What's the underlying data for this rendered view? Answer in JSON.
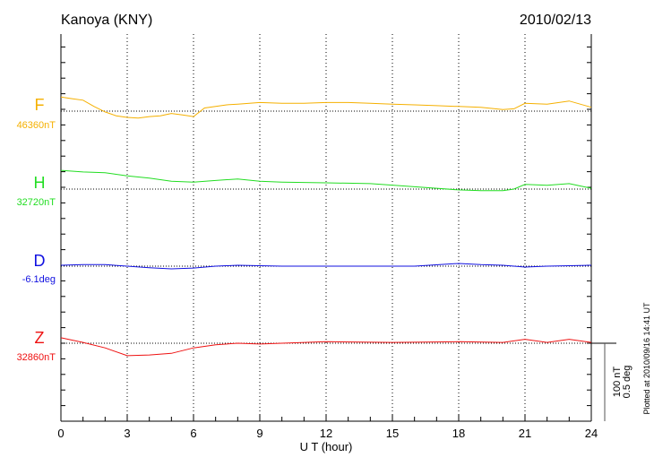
{
  "chart_data": {
    "type": "line",
    "title": "Kanoya (KNY)",
    "date": "2010/02/13",
    "xlabel": "U T (hour)",
    "xlim": [
      0,
      24
    ],
    "x_ticks": [
      "0",
      "3",
      "6",
      "9",
      "12",
      "15",
      "18",
      "21",
      "24"
    ],
    "scale_bar": {
      "nT": "100 nT",
      "deg": "0.5 deg"
    },
    "plotted_note": "Plotted at 2010/09/16 14:41 UT",
    "grid": "dotted vertical every 3 hours, dotted baseline per component",
    "series": [
      {
        "name": "F",
        "baseline_label": "46360nT",
        "unit": "nT",
        "color": "#f5b000",
        "x": [
          0,
          0.5,
          1,
          1.5,
          2,
          2.5,
          3,
          3.5,
          4,
          4.5,
          5,
          5.5,
          6,
          6.5,
          7,
          7.5,
          8,
          9,
          10,
          11,
          12,
          13,
          14,
          15,
          16,
          17,
          18,
          19,
          20,
          20.5,
          21,
          22,
          23,
          24
        ],
        "values": [
          18,
          16,
          14,
          6,
          -1,
          -6,
          -8,
          -9,
          -7,
          -6,
          -3,
          -5,
          -7,
          4,
          6,
          8,
          9,
          11,
          10,
          10,
          11,
          11,
          10,
          9,
          8,
          7,
          6,
          5,
          2,
          3,
          10,
          9,
          13,
          5
        ]
      },
      {
        "name": "H",
        "baseline_label": "32720nT",
        "unit": "nT",
        "color": "#22dd22",
        "x": [
          0,
          1,
          2,
          3,
          4,
          5,
          6,
          7,
          8,
          9,
          10,
          12,
          14,
          16,
          18,
          19,
          20,
          20.5,
          21,
          22,
          23,
          24
        ],
        "values": [
          24,
          22,
          21,
          17,
          14,
          10,
          9,
          11,
          13,
          10,
          9,
          8,
          7,
          3,
          -1,
          -2,
          -2,
          0,
          6,
          5,
          7,
          1
        ]
      },
      {
        "name": "D",
        "baseline_label": "-6.1deg",
        "unit": "deg",
        "color": "#1010e0",
        "x": [
          0,
          1,
          2,
          3,
          4,
          5,
          6,
          7,
          8,
          10,
          12,
          14,
          16,
          18,
          19,
          20,
          21,
          22,
          24
        ],
        "values": [
          0.006,
          0.01,
          0.01,
          0,
          -0.01,
          -0.017,
          -0.012,
          0,
          0.006,
          0,
          0,
          0,
          0,
          0.017,
          0.01,
          0.006,
          -0.006,
          0,
          0.006
        ]
      },
      {
        "name": "Z",
        "baseline_label": "32860nT",
        "unit": "nT",
        "color": "#ee1111",
        "x": [
          0,
          1,
          2,
          3,
          4,
          5,
          6,
          7,
          8,
          9,
          10,
          12,
          15,
          18,
          20,
          21,
          22,
          23,
          24
        ],
        "values": [
          7,
          1,
          -6,
          -16,
          -15,
          -13,
          -6,
          -2,
          0,
          -1,
          0,
          2,
          1,
          2,
          1,
          5,
          1,
          5,
          1
        ]
      }
    ]
  }
}
